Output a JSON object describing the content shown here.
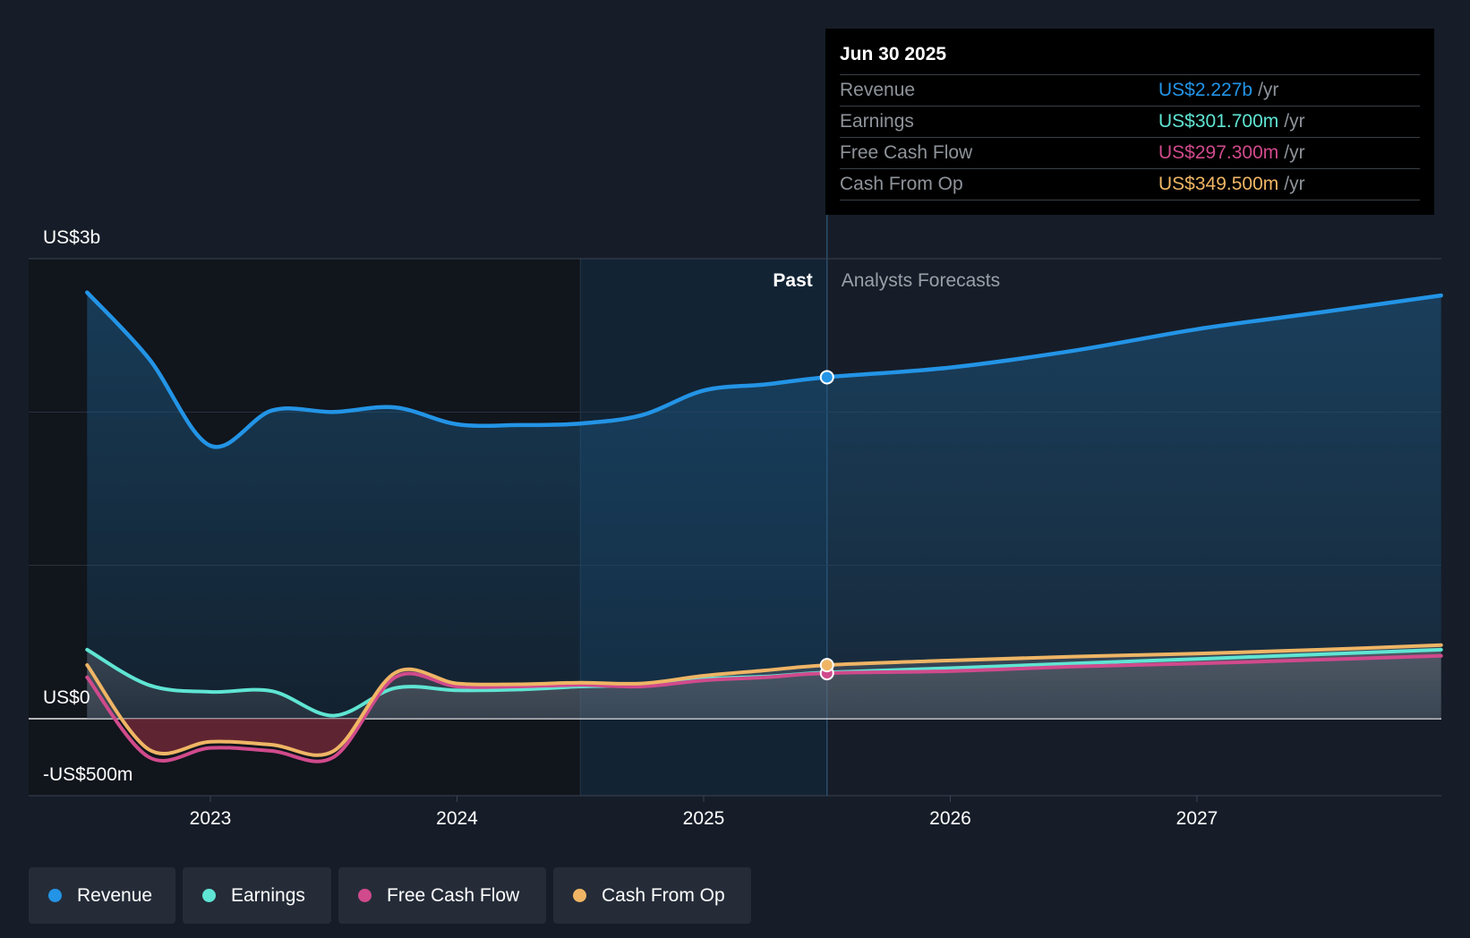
{
  "colors": {
    "revenue": "#2394e6",
    "earnings": "#5fe5d3",
    "free_cash_flow": "#d04a8c",
    "cash_from_op": "#efb565"
  },
  "tooltip": {
    "date": "Jun 30 2025",
    "rows": [
      {
        "label": "Revenue",
        "value": "US$2.227b",
        "unit": "/yr"
      },
      {
        "label": "Earnings",
        "value": "US$301.700m",
        "unit": "/yr"
      },
      {
        "label": "Free Cash Flow",
        "value": "US$297.300m",
        "unit": "/yr"
      },
      {
        "label": "Cash From Op",
        "value": "US$349.500m",
        "unit": "/yr"
      }
    ]
  },
  "legend": [
    {
      "label": "Revenue",
      "icon": "revenue-dot"
    },
    {
      "label": "Earnings",
      "icon": "earnings-dot"
    },
    {
      "label": "Free Cash Flow",
      "icon": "free-cash-flow-dot"
    },
    {
      "label": "Cash From Op",
      "icon": "cash-from-op-dot"
    }
  ],
  "chart_data": {
    "type": "area",
    "title": "",
    "xlabel": "",
    "ylabel": "",
    "y_tick_labels": {
      "top": "US$3b",
      "zero": "US$0",
      "bottom": "-US$500m"
    },
    "ylim": [
      -500,
      3000
    ],
    "y_unit": "US$m",
    "x_ticks": [
      2023,
      2024,
      2025,
      2026,
      2027
    ],
    "xlim": [
      2022.5,
      2027.99
    ],
    "past_label": "Past",
    "forecast_label": "Analysts Forecasts",
    "forecast_start": 2025.5,
    "highlight_band": [
      2024.5,
      2025.5
    ],
    "grid": true,
    "series": [
      {
        "name": "Revenue",
        "key": "revenue",
        "points": [
          [
            2022.5,
            2780
          ],
          [
            2022.75,
            2350
          ],
          [
            2023.0,
            1780
          ],
          [
            2023.25,
            2010
          ],
          [
            2023.5,
            2000
          ],
          [
            2023.75,
            2030
          ],
          [
            2024.0,
            1920
          ],
          [
            2024.25,
            1915
          ],
          [
            2024.5,
            1925
          ],
          [
            2024.75,
            1980
          ],
          [
            2025.0,
            2140
          ],
          [
            2025.25,
            2180
          ],
          [
            2025.5,
            2227
          ],
          [
            2026.0,
            2290
          ],
          [
            2026.5,
            2400
          ],
          [
            2027.0,
            2540
          ],
          [
            2027.5,
            2650
          ],
          [
            2027.99,
            2760
          ]
        ]
      },
      {
        "name": "Earnings",
        "key": "earnings",
        "points": [
          [
            2022.5,
            450
          ],
          [
            2022.75,
            220
          ],
          [
            2023.0,
            175
          ],
          [
            2023.25,
            180
          ],
          [
            2023.5,
            20
          ],
          [
            2023.75,
            200
          ],
          [
            2024.0,
            185
          ],
          [
            2024.25,
            190
          ],
          [
            2024.5,
            210
          ],
          [
            2024.75,
            220
          ],
          [
            2025.0,
            260
          ],
          [
            2025.25,
            275
          ],
          [
            2025.5,
            301.7
          ],
          [
            2026.0,
            330
          ],
          [
            2026.5,
            360
          ],
          [
            2027.0,
            390
          ],
          [
            2027.5,
            420
          ],
          [
            2027.99,
            450
          ]
        ]
      },
      {
        "name": "Free Cash Flow",
        "key": "free_cash_flow",
        "points": [
          [
            2022.5,
            270
          ],
          [
            2022.75,
            -250
          ],
          [
            2023.0,
            -190
          ],
          [
            2023.25,
            -210
          ],
          [
            2023.5,
            -250
          ],
          [
            2023.75,
            270
          ],
          [
            2024.0,
            210
          ],
          [
            2024.25,
            210
          ],
          [
            2024.5,
            220
          ],
          [
            2024.75,
            210
          ],
          [
            2025.0,
            250
          ],
          [
            2025.25,
            270
          ],
          [
            2025.5,
            297.3
          ],
          [
            2026.0,
            310
          ],
          [
            2026.5,
            340
          ],
          [
            2027.0,
            360
          ],
          [
            2027.5,
            385
          ],
          [
            2027.99,
            410
          ]
        ]
      },
      {
        "name": "Cash From Op",
        "key": "cash_from_op",
        "points": [
          [
            2022.5,
            350
          ],
          [
            2022.75,
            -200
          ],
          [
            2023.0,
            -150
          ],
          [
            2023.25,
            -170
          ],
          [
            2023.5,
            -210
          ],
          [
            2023.75,
            300
          ],
          [
            2024.0,
            230
          ],
          [
            2024.25,
            225
          ],
          [
            2024.5,
            235
          ],
          [
            2024.75,
            230
          ],
          [
            2025.0,
            280
          ],
          [
            2025.25,
            315
          ],
          [
            2025.5,
            349.5
          ],
          [
            2026.0,
            380
          ],
          [
            2026.5,
            405
          ],
          [
            2027.0,
            425
          ],
          [
            2027.5,
            450
          ],
          [
            2027.99,
            480
          ]
        ]
      }
    ]
  }
}
